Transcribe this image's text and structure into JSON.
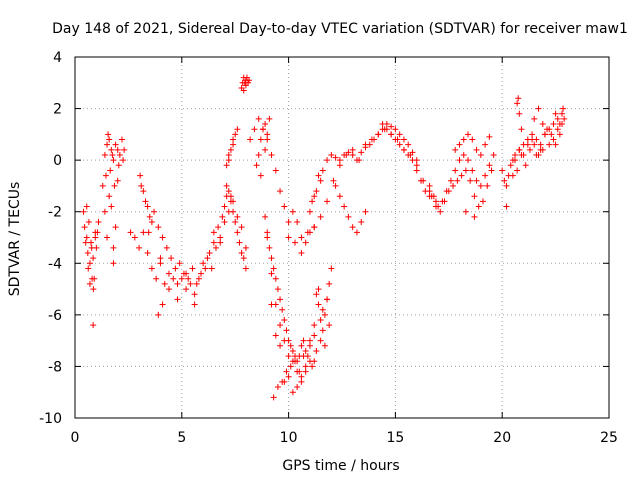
{
  "chart_data": {
    "type": "scatter",
    "title": "Day 148 of 2021, Sidereal Day-to-day VTEC variation (SDTVAR) for receiver maw1",
    "xlabel": "GPS time / hours",
    "ylabel": "SDTVAR / TECUs",
    "xlim": [
      0,
      25
    ],
    "ylim": [
      -10,
      4
    ],
    "xticks": [
      0,
      5,
      10,
      15,
      20,
      25
    ],
    "yticks": [
      -10,
      -8,
      -6,
      -4,
      -2,
      0,
      2,
      4
    ],
    "grid": true,
    "marker": "+",
    "colors": {
      "series": "#ff0000",
      "grid": "#a0a0a0",
      "axis": "#000000"
    },
    "series": [
      {
        "name": "maw1",
        "x": [
          0.4,
          0.45,
          0.5,
          0.55,
          0.6,
          0.65,
          0.7,
          0.75,
          0.8,
          0.85,
          0.9,
          0.95,
          1.0,
          1.05,
          1.1,
          0.55,
          0.62,
          0.7,
          0.78,
          0.86,
          0.95,
          0.85,
          1.4,
          1.5,
          1.6,
          1.7,
          1.8,
          1.9,
          2.0,
          2.1,
          2.2,
          2.3,
          1.45,
          1.65,
          1.85,
          2.05,
          2.25,
          1.55,
          1.75,
          1.3,
          1.4,
          1.5,
          1.6,
          1.7,
          1.8,
          1.9,
          2.0,
          1.8,
          2.6,
          2.8,
          3.0,
          3.2,
          3.4,
          3.6,
          3.8,
          4.0,
          4.2,
          4.4,
          4.6,
          4.8,
          5.0,
          5.2,
          5.4,
          5.6,
          5.8,
          6.0,
          6.2,
          6.4,
          6.6,
          6.8,
          3.1,
          3.3,
          3.5,
          3.7,
          3.9,
          4.1,
          4.3,
          4.5,
          4.7,
          4.9,
          5.1,
          5.3,
          5.5,
          5.7,
          5.9,
          6.1,
          6.3,
          6.5,
          3.2,
          3.4,
          3.6,
          4.0,
          4.4,
          4.8,
          5.2,
          5.6,
          3.9,
          4.1,
          3.05,
          3.45,
          6.5,
          6.7,
          6.9,
          7.0,
          7.1,
          7.2,
          7.3,
          7.4,
          7.5,
          7.6,
          7.7,
          7.8,
          7.9,
          8.0,
          6.8,
          7.0,
          7.2,
          7.4,
          7.6,
          7.8,
          8.0,
          7.1,
          7.3,
          7.1,
          7.2,
          7.3,
          7.4,
          7.5,
          7.6,
          7.2,
          7.4,
          7.8,
          7.85,
          7.9,
          7.95,
          8.0,
          8.05,
          8.1,
          8.15,
          7.9,
          8.0,
          8.2,
          8.4,
          8.6,
          8.8,
          9.0,
          9.2,
          9.4,
          9.6,
          9.8,
          10.0,
          8.5,
          8.6,
          8.7,
          8.8,
          8.9,
          9.0,
          9.1,
          8.7,
          8.9,
          8.9,
          9.0,
          9.1,
          9.2,
          9.3,
          9.4,
          9.5,
          9.6,
          9.7,
          9.8,
          9.9,
          10.0,
          10.1,
          10.2,
          10.3,
          10.4,
          10.5,
          10.6,
          10.7,
          10.8,
          10.9,
          11.0,
          11.1,
          11.2,
          11.3,
          9.0,
          9.2,
          9.4,
          9.6,
          9.8,
          10.0,
          10.2,
          10.4,
          10.6,
          10.8,
          11.0,
          11.2,
          9.2,
          9.6,
          10.0,
          10.4,
          10.8,
          11.2,
          9.4,
          9.8,
          10.2,
          10.6,
          11.0,
          9.3,
          9.5,
          9.7,
          9.9,
          10.1,
          10.3,
          10.5,
          10.7,
          10.0,
          10.3,
          10.6,
          10.9,
          11.2,
          11.5,
          11.8,
          12.1,
          12.4,
          12.7,
          13.0,
          13.3,
          13.6,
          13.9,
          14.2,
          14.5,
          14.8,
          15.1,
          15.4,
          15.7,
          16.0,
          16.3,
          16.6,
          16.9,
          10.2,
          10.4,
          10.6,
          10.8,
          11.0,
          11.2,
          11.3,
          11.4,
          11.5,
          11.6,
          11.7,
          11.8,
          11.9,
          12.0,
          11.5,
          11.7,
          11.9,
          11.4,
          11.6,
          11.8,
          11.0,
          11.1,
          11.2,
          11.3,
          11.5,
          11.6,
          11.4,
          11.8,
          12.0,
          12.2,
          12.4,
          12.6,
          12.8,
          13.0,
          13.2,
          13.4,
          13.6,
          13.8,
          14.0,
          14.2,
          14.4,
          14.6,
          14.8,
          15.0,
          15.2,
          15.4,
          15.6,
          15.8,
          16.0,
          14.4,
          14.6,
          14.8,
          15.0,
          15.2,
          15.4,
          15.6,
          15.8,
          16.0,
          16.2,
          16.4,
          16.6,
          12.2,
          12.4,
          12.6,
          12.8,
          13.0,
          13.2,
          13.4,
          13.6,
          16.6,
          16.8,
          17.0,
          17.2,
          17.4,
          17.6,
          17.8,
          18.0,
          18.2,
          18.4,
          18.6,
          18.8,
          19.0,
          19.2,
          19.4,
          19.6,
          16.7,
          16.9,
          17.1,
          17.3,
          17.5,
          17.7,
          17.9,
          18.1,
          18.3,
          18.5,
          18.7,
          18.9,
          19.1,
          19.3,
          19.5,
          17.8,
          18.0,
          18.2,
          18.4,
          18.6,
          18.8,
          19.0,
          19.2,
          19.4,
          18.3,
          18.7,
          20.0,
          20.1,
          20.2,
          20.3,
          20.4,
          20.5,
          20.6,
          20.8,
          21.0,
          21.2,
          21.4,
          21.6,
          21.8,
          22.0,
          22.2,
          22.4,
          22.6,
          22.8,
          22.9,
          20.6,
          20.8,
          21.0,
          21.2,
          21.4,
          21.6,
          21.8,
          22.0,
          22.2,
          22.4,
          22.6,
          22.8,
          20.5,
          20.7,
          20.9,
          21.1,
          21.3,
          21.5,
          21.7,
          21.9,
          22.1,
          22.3,
          22.5,
          22.7,
          20.7,
          20.75,
          20.8,
          21.5,
          21.7,
          22.5,
          22.7,
          22.85,
          20.2,
          20.9,
          21.9
        ],
        "y": [
          -2.0,
          -2.6,
          -3.2,
          -3.0,
          -3.6,
          -2.4,
          -4.0,
          -3.2,
          -4.6,
          -3.8,
          -4.6,
          -3.0,
          -3.4,
          -2.8,
          -2.4,
          -1.8,
          -4.2,
          -4.8,
          -3.4,
          -5.0,
          -2.8,
          -6.4,
          0.2,
          0.6,
          0.8,
          0.4,
          0.0,
          0.6,
          0.4,
          0.2,
          0.8,
          0.4,
          -0.6,
          -0.4,
          -1.0,
          -0.2,
          0.0,
          1.0,
          0.2,
          -1.0,
          -2.0,
          -3.0,
          -1.4,
          -1.8,
          -3.4,
          -2.6,
          -0.8,
          -4.0,
          -2.8,
          -3.0,
          -3.4,
          -2.8,
          -3.6,
          -4.2,
          -4.6,
          -4.0,
          -4.8,
          -4.4,
          -4.6,
          -4.8,
          -4.6,
          -4.4,
          -4.8,
          -5.2,
          -4.6,
          -4.0,
          -3.8,
          -4.2,
          -3.4,
          -3.2,
          -1.0,
          -1.6,
          -2.2,
          -2.0,
          -2.6,
          -3.0,
          -3.4,
          -3.8,
          -4.2,
          -4.0,
          -4.4,
          -4.6,
          -4.2,
          -4.8,
          -4.4,
          -4.2,
          -3.6,
          -3.2,
          -1.2,
          -1.8,
          -2.4,
          -3.8,
          -5.0,
          -5.4,
          -5.0,
          -5.6,
          -6.0,
          -5.6,
          -0.6,
          -2.8,
          -2.8,
          -2.6,
          -2.2,
          -1.8,
          -1.4,
          -1.2,
          -1.6,
          -2.0,
          -2.4,
          -2.8,
          -3.2,
          -3.6,
          -3.8,
          -4.2,
          -3.0,
          -2.4,
          -2.0,
          -1.6,
          -2.2,
          -2.6,
          -3.4,
          -1.0,
          -1.4,
          -0.2,
          0.0,
          0.4,
          0.8,
          1.0,
          1.2,
          0.2,
          0.6,
          2.8,
          3.0,
          3.2,
          3.0,
          3.1,
          3.2,
          3.0,
          3.1,
          2.7,
          2.9,
          0.8,
          1.2,
          1.6,
          1.2,
          0.8,
          0.2,
          -0.4,
          -1.2,
          -1.8,
          -2.4,
          -0.2,
          0.2,
          0.8,
          1.2,
          1.4,
          1.0,
          1.6,
          -0.6,
          0.4,
          -2.2,
          -2.8,
          -3.4,
          -3.8,
          -4.2,
          -4.6,
          -5.0,
          -5.4,
          -5.8,
          -6.2,
          -6.6,
          -7.0,
          -7.2,
          -7.4,
          -7.6,
          -7.8,
          -7.6,
          -7.2,
          -7.0,
          -7.4,
          -7.6,
          -7.8,
          -8.0,
          -7.8,
          -7.4,
          -3.0,
          -4.4,
          -5.6,
          -6.4,
          -7.0,
          -7.6,
          -7.8,
          -8.2,
          -8.4,
          -8.2,
          -7.2,
          -6.8,
          -5.6,
          -7.2,
          -8.4,
          -8.8,
          -8.0,
          -6.4,
          -6.8,
          -8.6,
          -9.0,
          -8.6,
          -7.0,
          -9.2,
          -8.8,
          -8.6,
          -8.2,
          -8.0,
          -7.8,
          -8.2,
          -7.6,
          -3.0,
          -3.2,
          -3.0,
          -2.8,
          -2.6,
          -2.2,
          -1.6,
          -0.8,
          -0.2,
          0.2,
          0.4,
          0.0,
          0.6,
          0.8,
          1.0,
          1.2,
          1.0,
          0.8,
          0.4,
          0.2,
          -0.2,
          -0.8,
          -1.2,
          -1.6,
          -2.0,
          -2.4,
          -3.6,
          -3.2,
          -2.8,
          -2.6,
          -5.2,
          -5.6,
          -6.2,
          -6.6,
          -6.0,
          -5.4,
          -4.8,
          -4.2,
          -7.0,
          -7.2,
          -6.4,
          -5.0,
          -5.8,
          -5.4,
          -2.0,
          -1.6,
          -1.4,
          -1.2,
          -0.8,
          -0.4,
          -0.6,
          0.0,
          0.2,
          0.1,
          0.0,
          0.2,
          0.3,
          0.2,
          0.0,
          0.3,
          0.5,
          0.6,
          0.8,
          1.0,
          1.2,
          1.4,
          1.3,
          1.2,
          1.0,
          0.8,
          0.6,
          0.3,
          0.0,
          1.4,
          1.2,
          1.0,
          0.8,
          0.6,
          0.4,
          0.2,
          0.0,
          -0.4,
          -0.8,
          -1.2,
          -1.4,
          -1.0,
          -1.4,
          -1.8,
          -2.2,
          -2.6,
          -2.8,
          -2.4,
          -2.0,
          -1.0,
          -1.4,
          -1.8,
          -1.6,
          -1.2,
          -0.8,
          -0.4,
          0.0,
          0.2,
          0.0,
          -0.4,
          -0.8,
          -1.0,
          -0.6,
          -0.2,
          0.2,
          -1.4,
          -1.8,
          -2.0,
          -1.6,
          -1.2,
          -1.0,
          -0.8,
          -0.6,
          -0.4,
          -0.8,
          -1.4,
          -1.8,
          -1.6,
          -1.0,
          -0.4,
          0.4,
          0.6,
          0.8,
          1.0,
          0.8,
          0.4,
          0.2,
          0.6,
          0.9,
          -2.0,
          -2.2,
          -0.4,
          -0.8,
          -1.0,
          -0.6,
          -0.2,
          0.0,
          0.2,
          0.4,
          0.6,
          0.8,
          1.0,
          0.8,
          0.6,
          1.0,
          1.2,
          1.4,
          1.6,
          1.8,
          1.6,
          0.0,
          0.4,
          0.2,
          0.6,
          0.8,
          0.2,
          0.4,
          1.0,
          0.6,
          0.8,
          1.2,
          1.4,
          -0.6,
          -0.4,
          0.2,
          -0.2,
          0.4,
          0.6,
          0.2,
          0.4,
          1.2,
          1.0,
          0.6,
          1.0,
          2.2,
          2.4,
          1.8,
          1.6,
          2.0,
          1.8,
          1.4,
          2.0,
          -1.8,
          1.2,
          1.4
        ]
      }
    ]
  }
}
